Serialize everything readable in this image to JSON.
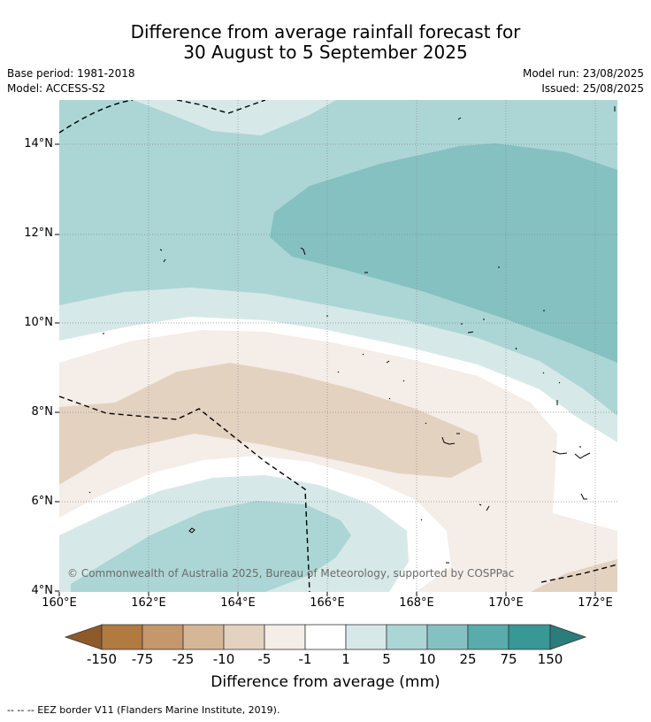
{
  "title": {
    "line1": "Difference from average rainfall forecast for",
    "line2": "30 August to 5 September 2025"
  },
  "meta": {
    "base_period": "Base period: 1981-2018",
    "model": "Model: ACCESS-S2",
    "model_run": "Model run: 23/08/2025",
    "issued": "Issued: 25/08/2025"
  },
  "map": {
    "lat_ticks": [
      "14°N",
      "12°N",
      "10°N",
      "8°N",
      "6°N",
      "4°N"
    ],
    "lon_ticks": [
      "160°E",
      "162°E",
      "164°E",
      "166°E",
      "168°E",
      "170°E",
      "172°E"
    ],
    "copyright": "© Commonwealth of Australia 2025, Bureau of Meteorology, supported by COSPPac"
  },
  "colorbar": {
    "labels": [
      "-150",
      "-75",
      "-25",
      "-10",
      "-5",
      "-1",
      "1",
      "5",
      "10",
      "25",
      "75",
      "150"
    ],
    "colors": [
      "#8e5a2a",
      "#b07a40",
      "#c4976c",
      "#d5b697",
      "#e4d2c1",
      "#f4ede8",
      "#ffffff",
      "#d6e9e8",
      "#acd6d5",
      "#86c1c1",
      "#5aabab",
      "#379896",
      "#2a7d7b"
    ],
    "title": "Difference from average (mm)"
  },
  "footer": "--  --  -- EEZ border V11 (Flanders Marine Institute, 2019)."
}
